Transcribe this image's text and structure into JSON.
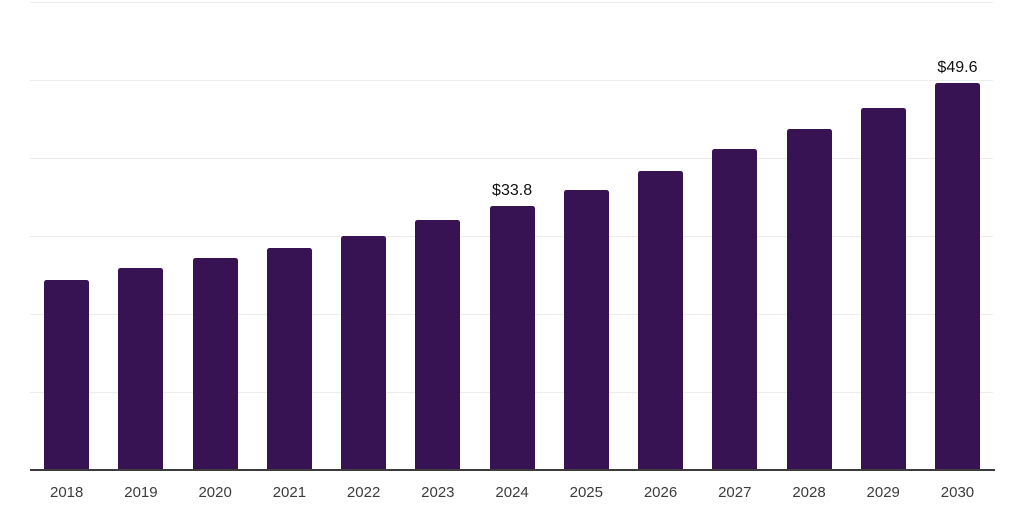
{
  "chart_data": {
    "type": "bar",
    "title": "",
    "xlabel": "",
    "ylabel": "",
    "categories": [
      "2018",
      "2019",
      "2020",
      "2021",
      "2022",
      "2023",
      "2024",
      "2025",
      "2026",
      "2027",
      "2028",
      "2029",
      "2030"
    ],
    "values": [
      24.4,
      25.9,
      27.2,
      28.5,
      30.0,
      32.0,
      33.8,
      35.9,
      38.3,
      41.2,
      43.7,
      46.4,
      49.6
    ],
    "data_labels": [
      {
        "category": "2024",
        "label": "$33.8"
      },
      {
        "category": "2030",
        "label": "$49.6"
      }
    ],
    "ylim": [
      0,
      60
    ],
    "grid_interval": 10,
    "grid": "horizontal-only",
    "y_tick_labels": "none",
    "legend": "none",
    "colors": {
      "bar": "#371353",
      "gridline": "#ececec",
      "axis_line": "#3c3c3c",
      "tick_label": "#3c3c3c",
      "data_label": "#111111",
      "background": "#ffffff"
    }
  }
}
